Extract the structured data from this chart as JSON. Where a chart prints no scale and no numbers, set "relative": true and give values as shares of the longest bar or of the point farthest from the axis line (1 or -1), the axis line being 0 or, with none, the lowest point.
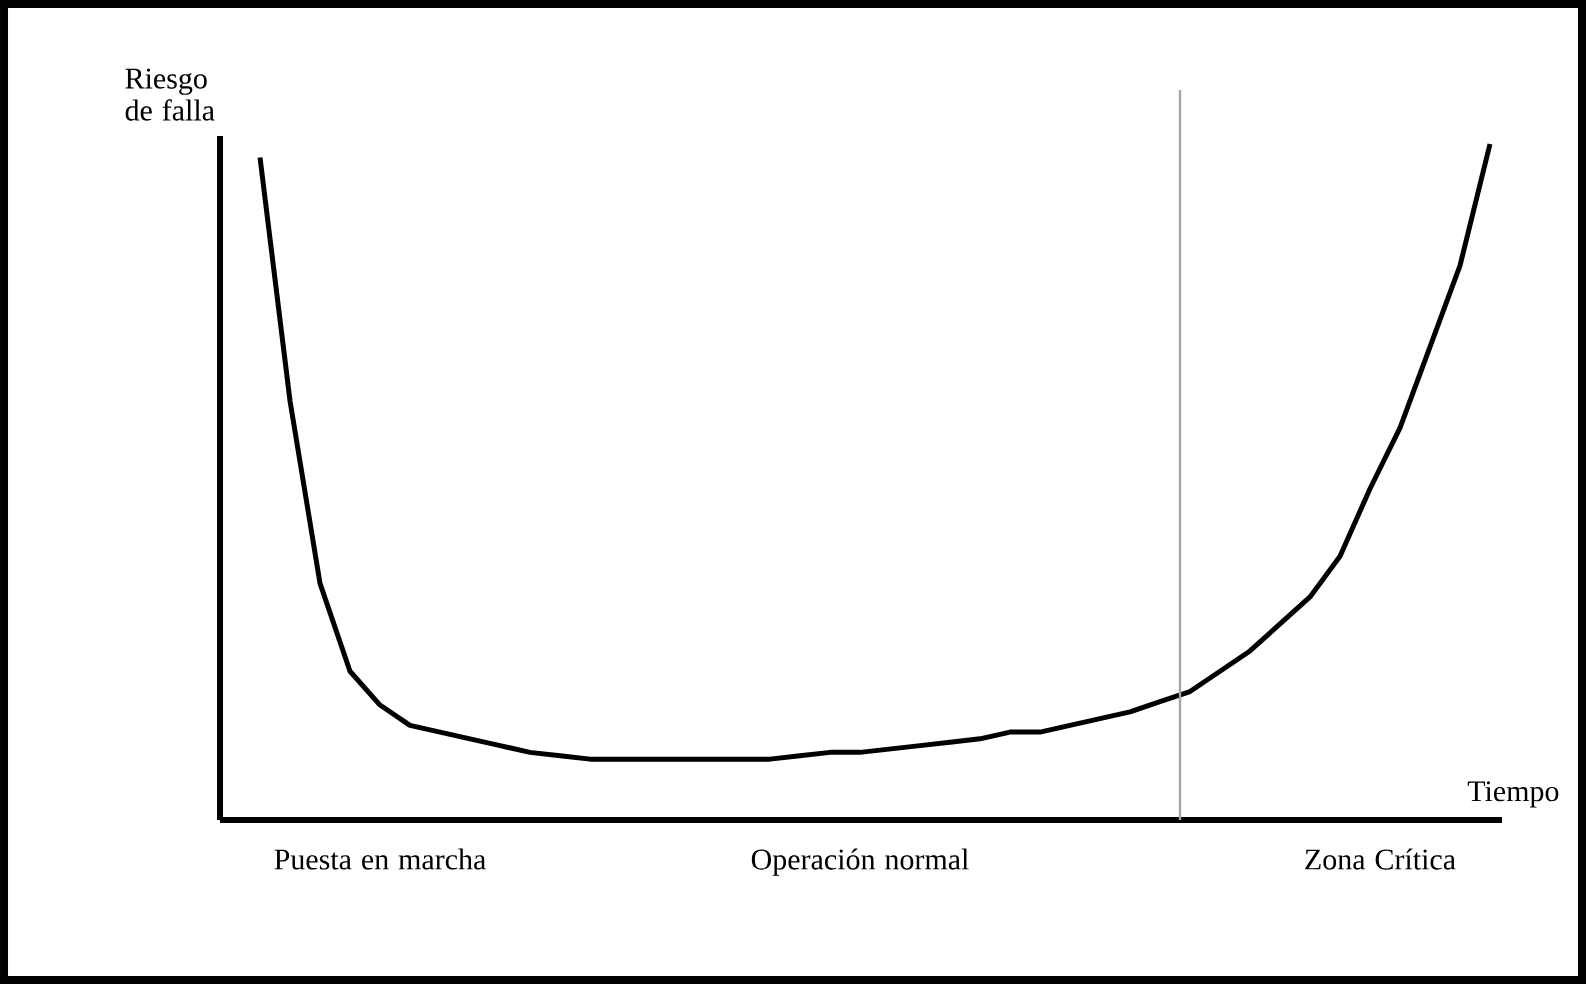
{
  "chart_data": {
    "type": "line",
    "relative": true,
    "xlabel": "Tiempo",
    "ylabel": "Riesgo de falla",
    "categories": [
      null,
      null,
      null,
      null,
      null,
      null,
      null,
      null,
      null,
      null,
      null,
      null,
      null,
      null,
      null,
      null,
      null,
      null,
      null,
      null,
      null,
      null,
      null,
      null,
      null,
      null,
      null,
      null,
      null,
      null,
      null,
      null,
      null,
      null,
      null,
      null,
      null,
      null,
      null,
      null,
      null,
      null
    ],
    "series": [
      {
        "color": "#000000",
        "values": [
          0.98,
          0.62,
          0.35,
          0.22,
          0.17,
          0.14,
          0.13,
          0.12,
          0.11,
          0.1,
          0.095,
          0.09,
          0.09,
          0.09,
          0.09,
          0.09,
          0.09,
          0.09,
          0.095,
          0.1,
          0.1,
          0.105,
          0.11,
          0.115,
          0.12,
          0.13,
          0.13,
          0.14,
          0.15,
          0.16,
          0.175,
          0.19,
          0.22,
          0.25,
          0.29,
          0.33,
          0.39,
          0.49,
          0.58,
          0.7,
          0.82,
          1.0
        ]
      }
    ],
    "annotations": [
      "Puesta en marcha",
      "Operación normal",
      "Zona Crítica"
    ],
    "marker": "none",
    "line_style": "solid"
  }
}
